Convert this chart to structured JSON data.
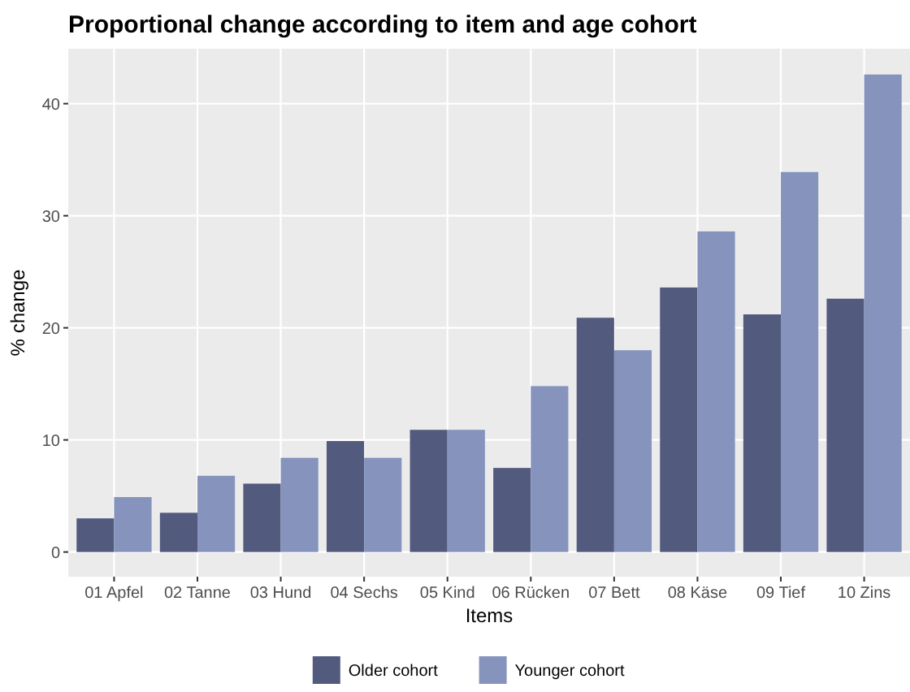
{
  "chart_data": {
    "type": "bar",
    "title": "Proportional change according to item and age cohort",
    "xlabel": "Items",
    "ylabel": "% change",
    "categories": [
      "01 Apfel",
      "02 Tanne",
      "03 Hund",
      "04 Sechs",
      "05 Kind",
      "06 Rücken",
      "07 Bett",
      "08 Käse",
      "09 Tief",
      "10 Zins"
    ],
    "series": [
      {
        "name": "Older cohort",
        "color": "#525a7e",
        "values": [
          3.0,
          3.5,
          6.1,
          9.9,
          10.9,
          7.5,
          20.9,
          23.6,
          21.2,
          22.6
        ]
      },
      {
        "name": "Younger cohort",
        "color": "#8593bd",
        "values": [
          4.9,
          6.8,
          8.4,
          8.4,
          10.9,
          14.8,
          18.0,
          28.6,
          33.9,
          42.6
        ]
      }
    ],
    "ylim": [
      -2.2,
      44.9
    ],
    "yticks": [
      0,
      10,
      20,
      30,
      40
    ],
    "grid": true,
    "legend": "bottom"
  }
}
